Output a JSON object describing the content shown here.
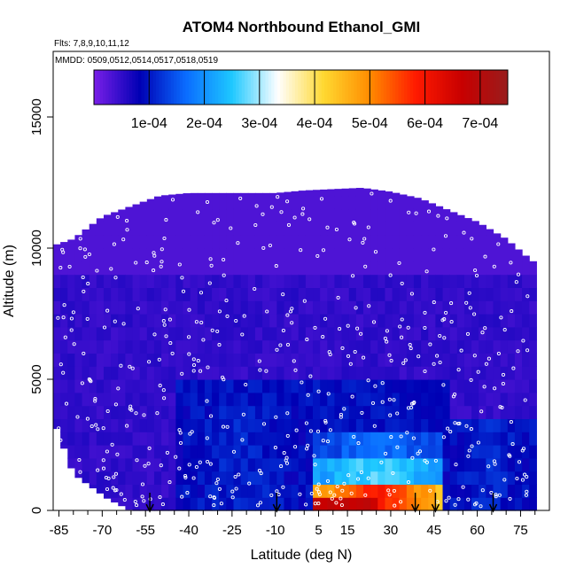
{
  "chart_data": {
    "type": "heatmap",
    "title": "ATOM4 Northbound Ethanol_GMI",
    "flights_note": "Flts: 7,8,9,10,11,12",
    "dates_note": "MMDD: 0509,0512,0514,0517,0518,0519",
    "xlabel": "Latitude (deg N)",
    "ylabel": "Altitude (m)",
    "xlim": [
      -87,
      85
    ],
    "ylim": [
      0,
      17500
    ],
    "x_ticks": [
      -85,
      -70,
      -55,
      -40,
      -25,
      -10,
      5,
      15,
      30,
      45,
      60,
      75
    ],
    "x_minor_ticks": [
      -80,
      -75,
      -65,
      -60,
      -50,
      -45,
      -35,
      -30,
      -20,
      -15,
      -5,
      0,
      10,
      20,
      25,
      35,
      40,
      50,
      55,
      65,
      70,
      80
    ],
    "y_ticks": [
      0,
      5000,
      10000,
      15000
    ],
    "colorbar": {
      "min": 0,
      "max": 0.00075,
      "tick_values": [
        0.0001,
        0.0002,
        0.0003,
        0.0004,
        0.0005,
        0.0006,
        0.0007
      ],
      "tick_labels": [
        "1e-04",
        "2e-04",
        "3e-04",
        "4e-04",
        "5e-04",
        "6e-04",
        "7e-04"
      ],
      "colors": [
        "#7a1fe8",
        "#0000b4",
        "#0a6cff",
        "#1ec8ff",
        "#ffffff",
        "#ffd830",
        "#ff8c00",
        "#ff1a00",
        "#c80000",
        "#9a1c1c"
      ]
    },
    "profile_top_altitude": [
      {
        "lat": -87,
        "alt": 10100
      },
      {
        "lat": -80,
        "alt": 10350
      },
      {
        "lat": -70,
        "alt": 11200
      },
      {
        "lat": -60,
        "alt": 11600
      },
      {
        "lat": -50,
        "alt": 12000
      },
      {
        "lat": -40,
        "alt": 12100
      },
      {
        "lat": -30,
        "alt": 12100
      },
      {
        "lat": -20,
        "alt": 12100
      },
      {
        "lat": -10,
        "alt": 12100
      },
      {
        "lat": 0,
        "alt": 12200
      },
      {
        "lat": 10,
        "alt": 12250
      },
      {
        "lat": 20,
        "alt": 12300
      },
      {
        "lat": 30,
        "alt": 12150
      },
      {
        "lat": 40,
        "alt": 11900
      },
      {
        "lat": 50,
        "alt": 11450
      },
      {
        "lat": 60,
        "alt": 11000
      },
      {
        "lat": 70,
        "alt": 10350
      },
      {
        "lat": 79,
        "alt": 9500
      }
    ],
    "profile_bottom_altitude": [
      {
        "lat": -87,
        "alt": 3500
      },
      {
        "lat": -80,
        "alt": 1400
      },
      {
        "lat": -75,
        "alt": 1000
      },
      {
        "lat": -68,
        "alt": 450
      },
      {
        "lat": -60,
        "alt": 0
      }
    ],
    "sounding_markers_lat": [
      -53.5,
      -9.5,
      38.5,
      45.5,
      65.5
    ],
    "enhancement_regions": [
      {
        "lat": [
          3,
          47
        ],
        "alt": [
          0,
          1000
        ],
        "value": 0.00058
      },
      {
        "lat": [
          3,
          47
        ],
        "alt": [
          1000,
          2000
        ],
        "value": 0.00025
      },
      {
        "lat": [
          3,
          47
        ],
        "alt": [
          2000,
          3000
        ],
        "value": 0.00015
      },
      {
        "lat": [
          -45,
          3
        ],
        "alt": [
          0,
          4000
        ],
        "value": 9e-05
      },
      {
        "lat": [
          47,
          79
        ],
        "alt": [
          0,
          3500
        ],
        "value": 9e-05
      }
    ]
  }
}
